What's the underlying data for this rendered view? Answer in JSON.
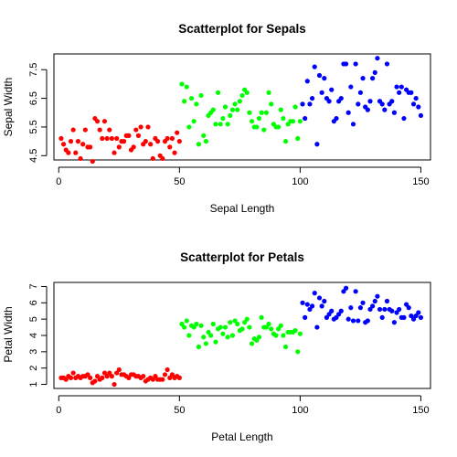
{
  "chart_data": [
    {
      "type": "scatter",
      "title": "Scatterplot for Sepals",
      "xlabel": "Sepal Length",
      "ylabel": "Sepal Width",
      "xlim": [
        -2,
        154
      ],
      "ylim": [
        4.35,
        8.05
      ],
      "xticks": [
        0,
        50,
        100,
        150
      ],
      "yticks": [
        4.5,
        5.5,
        6.5,
        7.5
      ],
      "grid": false,
      "series": [
        {
          "color": "#ff0000",
          "x": [
            1,
            2,
            3,
            4,
            5,
            6,
            7,
            8,
            9,
            10,
            11,
            12,
            13,
            14,
            15,
            16,
            17,
            18,
            19,
            20,
            21,
            22,
            23,
            24,
            25,
            26,
            27,
            28,
            29,
            30,
            31,
            32,
            33,
            34,
            35,
            36,
            37,
            38,
            39,
            40,
            41,
            42,
            43,
            44,
            45,
            46,
            47,
            48,
            49,
            50
          ],
          "y": [
            5.1,
            4.9,
            4.7,
            4.6,
            5.0,
            5.4,
            4.6,
            5.0,
            4.4,
            4.9,
            5.4,
            4.8,
            4.8,
            4.3,
            5.8,
            5.7,
            5.4,
            5.1,
            5.7,
            5.1,
            5.4,
            5.1,
            4.6,
            5.1,
            4.8,
            5.0,
            5.0,
            5.2,
            5.2,
            4.7,
            4.8,
            5.4,
            5.2,
            5.5,
            4.9,
            5.0,
            5.5,
            4.9,
            4.4,
            5.1,
            5.0,
            4.5,
            4.4,
            5.0,
            5.1,
            4.8,
            5.1,
            4.6,
            5.3,
            5.0
          ]
        },
        {
          "color": "#00ff00",
          "x": [
            51,
            52,
            53,
            54,
            55,
            56,
            57,
            58,
            59,
            60,
            61,
            62,
            63,
            64,
            65,
            66,
            67,
            68,
            69,
            70,
            71,
            72,
            73,
            74,
            75,
            76,
            77,
            78,
            79,
            80,
            81,
            82,
            83,
            84,
            85,
            86,
            87,
            88,
            89,
            90,
            91,
            92,
            93,
            94,
            95,
            96,
            97,
            98,
            99,
            100
          ],
          "y": [
            7.0,
            6.4,
            6.9,
            5.5,
            6.5,
            5.7,
            6.3,
            4.9,
            6.6,
            5.2,
            5.0,
            5.9,
            6.0,
            6.1,
            5.6,
            6.7,
            5.6,
            5.8,
            6.2,
            5.6,
            5.9,
            6.1,
            6.3,
            6.1,
            6.4,
            6.6,
            6.8,
            6.7,
            6.0,
            5.7,
            5.5,
            5.5,
            5.8,
            6.0,
            5.4,
            6.0,
            6.7,
            6.3,
            5.6,
            5.5,
            5.5,
            6.1,
            5.8,
            5.0,
            5.6,
            5.7,
            5.7,
            6.2,
            5.1,
            5.7
          ]
        },
        {
          "color": "#0000ff",
          "x": [
            101,
            102,
            103,
            104,
            105,
            106,
            107,
            108,
            109,
            110,
            111,
            112,
            113,
            114,
            115,
            116,
            117,
            118,
            119,
            120,
            121,
            122,
            123,
            124,
            125,
            126,
            127,
            128,
            129,
            130,
            131,
            132,
            133,
            134,
            135,
            136,
            137,
            138,
            139,
            140,
            141,
            142,
            143,
            144,
            145,
            146,
            147,
            148,
            149,
            150
          ],
          "y": [
            6.3,
            5.8,
            7.1,
            6.3,
            6.5,
            7.6,
            4.9,
            7.3,
            6.7,
            7.2,
            6.5,
            6.4,
            6.8,
            5.7,
            5.8,
            6.4,
            6.5,
            7.7,
            7.7,
            6.0,
            6.9,
            5.6,
            7.7,
            6.3,
            6.7,
            7.2,
            6.2,
            6.1,
            6.4,
            7.2,
            7.4,
            7.9,
            6.4,
            6.3,
            6.1,
            7.7,
            6.3,
            6.4,
            6.0,
            6.9,
            6.7,
            6.9,
            5.8,
            6.8,
            6.7,
            6.7,
            6.3,
            6.5,
            6.2,
            5.9
          ]
        }
      ]
    },
    {
      "type": "scatter",
      "title": "Scatterplot for Petals",
      "xlabel": "Petal Length",
      "ylabel": "Petal Width",
      "xlim": [
        -2,
        154
      ],
      "ylim": [
        0.75,
        7.25
      ],
      "xticks": [
        0,
        50,
        100,
        150
      ],
      "yticks": [
        1,
        2,
        3,
        4,
        5,
        6,
        7
      ],
      "grid": false,
      "series": [
        {
          "color": "#ff0000",
          "x": [
            1,
            2,
            3,
            4,
            5,
            6,
            7,
            8,
            9,
            10,
            11,
            12,
            13,
            14,
            15,
            16,
            17,
            18,
            19,
            20,
            21,
            22,
            23,
            24,
            25,
            26,
            27,
            28,
            29,
            30,
            31,
            32,
            33,
            34,
            35,
            36,
            37,
            38,
            39,
            40,
            41,
            42,
            43,
            44,
            45,
            46,
            47,
            48,
            49,
            50
          ],
          "y": [
            1.4,
            1.4,
            1.3,
            1.5,
            1.4,
            1.7,
            1.4,
            1.5,
            1.4,
            1.5,
            1.5,
            1.6,
            1.4,
            1.1,
            1.2,
            1.5,
            1.3,
            1.4,
            1.7,
            1.5,
            1.7,
            1.5,
            1.0,
            1.7,
            1.9,
            1.6,
            1.6,
            1.5,
            1.4,
            1.6,
            1.6,
            1.5,
            1.5,
            1.4,
            1.5,
            1.2,
            1.3,
            1.4,
            1.3,
            1.5,
            1.3,
            1.3,
            1.3,
            1.6,
            1.9,
            1.4,
            1.6,
            1.4,
            1.5,
            1.4
          ]
        },
        {
          "color": "#00ff00",
          "x": [
            51,
            52,
            53,
            54,
            55,
            56,
            57,
            58,
            59,
            60,
            61,
            62,
            63,
            64,
            65,
            66,
            67,
            68,
            69,
            70,
            71,
            72,
            73,
            74,
            75,
            76,
            77,
            78,
            79,
            80,
            81,
            82,
            83,
            84,
            85,
            86,
            87,
            88,
            89,
            90,
            91,
            92,
            93,
            94,
            95,
            96,
            97,
            98,
            99,
            100
          ],
          "y": [
            4.7,
            4.5,
            4.9,
            4.0,
            4.6,
            4.5,
            4.7,
            3.3,
            4.6,
            3.9,
            3.5,
            4.2,
            4.0,
            4.7,
            3.6,
            4.4,
            4.5,
            4.1,
            4.5,
            3.9,
            4.8,
            4.0,
            4.9,
            4.7,
            4.3,
            4.4,
            4.8,
            5.0,
            4.5,
            3.5,
            3.8,
            3.7,
            3.9,
            5.1,
            4.5,
            4.5,
            4.7,
            4.4,
            4.1,
            4.0,
            4.4,
            4.6,
            4.0,
            3.3,
            4.2,
            4.2,
            4.2,
            4.3,
            3.0,
            4.1
          ]
        },
        {
          "color": "#0000ff",
          "x": [
            101,
            102,
            103,
            104,
            105,
            106,
            107,
            108,
            109,
            110,
            111,
            112,
            113,
            114,
            115,
            116,
            117,
            118,
            119,
            120,
            121,
            122,
            123,
            124,
            125,
            126,
            127,
            128,
            129,
            130,
            131,
            132,
            133,
            134,
            135,
            136,
            137,
            138,
            139,
            140,
            141,
            142,
            143,
            144,
            145,
            146,
            147,
            148,
            149,
            150
          ],
          "y": [
            6.0,
            5.1,
            5.9,
            5.6,
            5.8,
            6.6,
            4.5,
            6.3,
            5.8,
            6.1,
            5.1,
            5.3,
            5.5,
            5.0,
            5.1,
            5.3,
            5.5,
            6.7,
            6.9,
            5.0,
            5.7,
            4.9,
            6.7,
            4.9,
            5.7,
            6.0,
            4.8,
            4.9,
            5.6,
            5.8,
            6.1,
            6.4,
            5.6,
            5.1,
            5.6,
            6.1,
            5.6,
            5.5,
            4.8,
            5.4,
            5.6,
            5.1,
            5.1,
            5.9,
            5.7,
            5.2,
            5.0,
            5.2,
            5.4,
            5.1
          ]
        }
      ]
    }
  ]
}
